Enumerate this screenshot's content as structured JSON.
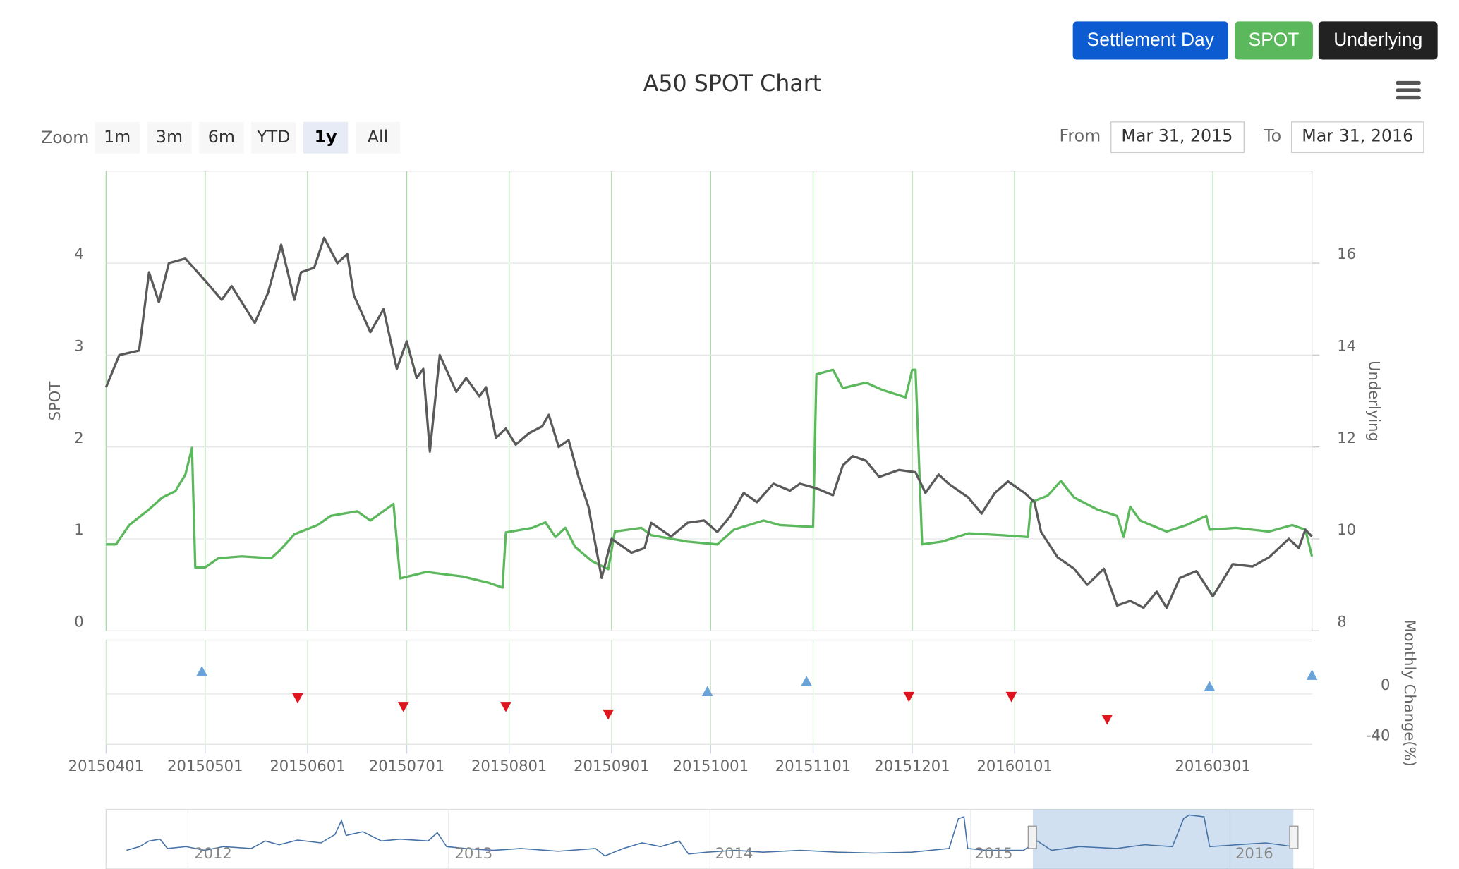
{
  "toolbar": {
    "buttons": [
      "Settlement Day",
      "SPOT",
      "Underlying"
    ]
  },
  "chart_data": {
    "type": "line",
    "title": "A50 SPOT Chart",
    "range_selector": {
      "label": "Zoom",
      "buttons": [
        "1m",
        "3m",
        "6m",
        "YTD",
        "1y",
        "All"
      ],
      "selected": "1y",
      "from_label": "From",
      "from": "Mar 31, 2015",
      "to_label": "To",
      "to": "Mar 31, 2016"
    },
    "xlim": [
      "20150401",
      "20160331"
    ],
    "xticks": [
      "20150401",
      "20150501",
      "20150601",
      "20150701",
      "20150801",
      "20150901",
      "20151001",
      "20151101",
      "20151201",
      "20160101",
      "20160301"
    ],
    "ylim": [
      0,
      5
    ],
    "yticks": [
      0,
      1,
      2,
      3,
      4
    ],
    "ylabel": "SPOT",
    "y2lim": [
      8,
      18
    ],
    "y2ticks": [
      8,
      10,
      12,
      14,
      16
    ],
    "y2label": "Underlying",
    "y3lim": [
      -40,
      40
    ],
    "y3ticks": [
      -40,
      0
    ],
    "y3label": "Monthly Change(%)",
    "grid": true,
    "series": [
      {
        "color": "#5cb85c",
        "axis": "y",
        "x": [
          "20150401",
          "20150404",
          "20150408",
          "20150414",
          "20150418",
          "20150422",
          "20150425",
          "20150427",
          "20150428",
          "20150501",
          "20150505",
          "20150512",
          "20150521",
          "20150524",
          "20150528",
          "20150604",
          "20150608",
          "20150616",
          "20150620",
          "20150627",
          "20150629",
          "20150707",
          "20150718",
          "20150726",
          "20150730",
          "20150731",
          "20150808",
          "20150812",
          "20150815",
          "20150818",
          "20150821",
          "20150826",
          "20150831",
          "20150902",
          "20150910",
          "20150913",
          "20150924",
          "20151003",
          "20151008",
          "20151017",
          "20151022",
          "20151101",
          "20151102",
          "20151107",
          "20151110",
          "20151117",
          "20151122",
          "20151129",
          "20151201",
          "20151202",
          "20151204",
          "20151210",
          "20151218",
          "20151228",
          "20160105",
          "20160106",
          "20160111",
          "20160115",
          "20160119",
          "20160126",
          "20160201",
          "20160203",
          "20160205",
          "20160208",
          "20160216",
          "20160222",
          "20160228",
          "20160229",
          "20160308",
          "20160318",
          "20160325",
          "20160329",
          "20160331"
        ],
        "values": [
          0.94,
          0.94,
          1.15,
          1.32,
          1.45,
          1.52,
          1.7,
          1.99,
          0.69,
          0.69,
          0.79,
          0.81,
          0.79,
          0.89,
          1.05,
          1.15,
          1.25,
          1.3,
          1.2,
          1.38,
          0.57,
          0.64,
          0.59,
          0.52,
          0.47,
          1.07,
          1.12,
          1.18,
          1.02,
          1.12,
          0.91,
          0.76,
          0.67,
          1.08,
          1.12,
          1.04,
          0.97,
          0.94,
          1.1,
          1.2,
          1.15,
          1.13,
          2.79,
          2.84,
          2.64,
          2.7,
          2.62,
          2.54,
          2.84,
          2.84,
          0.94,
          0.97,
          1.06,
          1.04,
          1.02,
          1.4,
          1.47,
          1.63,
          1.45,
          1.32,
          1.25,
          1.02,
          1.35,
          1.2,
          1.08,
          1.15,
          1.25,
          1.1,
          1.12,
          1.08,
          1.15,
          1.1,
          0.81
        ]
      },
      {
        "color": "#5a5a5a",
        "axis": "y2",
        "x": [
          "20150401",
          "20150405",
          "20150411",
          "20150414",
          "20150417",
          "20150420",
          "20150425",
          "20150430",
          "20150506",
          "20150509",
          "20150516",
          "20150520",
          "20150524",
          "20150528",
          "20150530",
          "20150603",
          "20150606",
          "20150610",
          "20150613",
          "20150615",
          "20150620",
          "20150624",
          "20150628",
          "20150701",
          "20150704",
          "20150706",
          "20150708",
          "20150711",
          "20150716",
          "20150719",
          "20150723",
          "20150725",
          "20150728",
          "20150731",
          "20150803",
          "20150807",
          "20150811",
          "20150813",
          "20150816",
          "20150819",
          "20150822",
          "20150825",
          "20150829",
          "20150901",
          "20150904",
          "20150907",
          "20150911",
          "20150913",
          "20150919",
          "20150924",
          "20150929",
          "20151003",
          "20151007",
          "20151011",
          "20151015",
          "20151020",
          "20151025",
          "20151028",
          "20151102",
          "20151107",
          "20151110",
          "20151113",
          "20151117",
          "20151121",
          "20151127",
          "20151202",
          "20151205",
          "20151209",
          "20151212",
          "20151218",
          "20151222",
          "20151226",
          "20151230",
          "20160104",
          "20160107",
          "20160109",
          "20160114",
          "20160119",
          "20160123",
          "20160128",
          "20160201",
          "20160205",
          "20160209",
          "20160213",
          "20160216",
          "20160220",
          "20160225",
          "20160301",
          "20160307",
          "20160313",
          "20160318",
          "20160324",
          "20160327",
          "20160329",
          "20160331"
        ],
        "values": [
          13.3,
          14.0,
          14.1,
          15.8,
          15.15,
          16.0,
          16.1,
          15.7,
          15.2,
          15.5,
          14.7,
          15.35,
          16.4,
          15.2,
          15.8,
          15.9,
          16.55,
          16.0,
          16.2,
          15.3,
          14.5,
          15.0,
          13.7,
          14.3,
          13.5,
          13.7,
          11.9,
          14.0,
          13.2,
          13.5,
          13.1,
          13.3,
          12.2,
          12.4,
          12.05,
          12.3,
          12.45,
          12.7,
          12.0,
          12.15,
          11.35,
          10.7,
          9.15,
          10.0,
          9.85,
          9.7,
          9.8,
          10.35,
          10.05,
          10.35,
          10.4,
          10.15,
          10.5,
          11.0,
          10.8,
          11.2,
          11.05,
          11.2,
          11.1,
          10.95,
          11.6,
          11.8,
          11.7,
          11.35,
          11.5,
          11.45,
          11.0,
          11.4,
          11.2,
          10.9,
          10.55,
          11.0,
          11.25,
          11.0,
          10.8,
          10.15,
          9.6,
          9.35,
          9.0,
          9.35,
          8.55,
          8.65,
          8.5,
          8.85,
          8.5,
          9.15,
          9.3,
          8.75,
          9.45,
          9.4,
          9.6,
          10.0,
          9.8,
          10.2,
          10.05
        ]
      },
      {
        "type": "scatter",
        "axis": "y3",
        "color": "#6aa3d9",
        "down_color": "#e0141e",
        "x": [
          "20150430",
          "20150529",
          "20150630",
          "20150731",
          "20150831",
          "20150930",
          "20151030",
          "20151130",
          "20151231",
          "20160129",
          "20160229",
          "20160331"
        ],
        "values": [
          18,
          -3,
          -10,
          -10,
          -16,
          2,
          10,
          -2,
          -2,
          -20,
          6,
          15
        ]
      }
    ],
    "navigator": {
      "labels": [
        "2012",
        "2013",
        "2014",
        "2015",
        "2016"
      ]
    }
  }
}
